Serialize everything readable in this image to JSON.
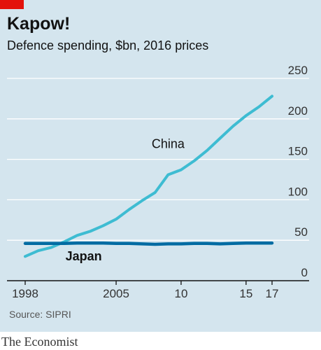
{
  "header": {
    "title": "Kapow!",
    "subtitle": "Defence spending, $bn, 2016 prices"
  },
  "footer": {
    "source": "Source: SIPRI",
    "brand": "The Economist"
  },
  "colors": {
    "background": "#d4e5ee",
    "accent_tag": "#e3120b",
    "china": "#3ebcd2",
    "japan": "#006ba2",
    "grid": "#ffffff",
    "axis": "#121212"
  },
  "chart_data": {
    "type": "line",
    "title": "Kapow!",
    "subtitle": "Defence spending, $bn, 2016 prices",
    "xlim": [
      1998,
      2017
    ],
    "ylim": [
      0,
      250
    ],
    "x_ticks": [
      {
        "value": 1998,
        "label": "1998"
      },
      {
        "value": 2005,
        "label": "2005"
      },
      {
        "value": 2010,
        "label": "10"
      },
      {
        "value": 2015,
        "label": "15"
      },
      {
        "value": 2017,
        "label": "17"
      }
    ],
    "y_ticks": [
      {
        "value": 0,
        "label": "0"
      },
      {
        "value": 50,
        "label": "50"
      },
      {
        "value": 100,
        "label": "100"
      },
      {
        "value": 150,
        "label": "150"
      },
      {
        "value": 200,
        "label": "200"
      },
      {
        "value": 250,
        "label": "250"
      }
    ],
    "y_axis_side": "right",
    "grid": true,
    "x": [
      1998,
      1999,
      2000,
      2001,
      2002,
      2003,
      2004,
      2005,
      2006,
      2007,
      2008,
      2009,
      2010,
      2011,
      2012,
      2013,
      2014,
      2015,
      2016,
      2017
    ],
    "series": [
      {
        "name": "China",
        "color": "#3ebcd2",
        "label_year": 2009,
        "label_value": 164,
        "values": [
          30,
          37,
          41,
          48,
          56,
          61,
          68,
          76,
          88,
          99,
          109,
          131,
          137,
          148,
          161,
          176,
          191,
          204,
          215,
          228
        ]
      },
      {
        "name": "Japan",
        "color": "#006ba2",
        "label_year": 2002.5,
        "label_value": 25,
        "values": [
          46,
          46,
          46,
          46,
          46.5,
          46.5,
          46.5,
          46,
          46,
          45.5,
          45,
          45.5,
          45.5,
          46,
          46,
          45.5,
          46,
          46.5,
          46.5,
          46.5
        ]
      }
    ]
  }
}
